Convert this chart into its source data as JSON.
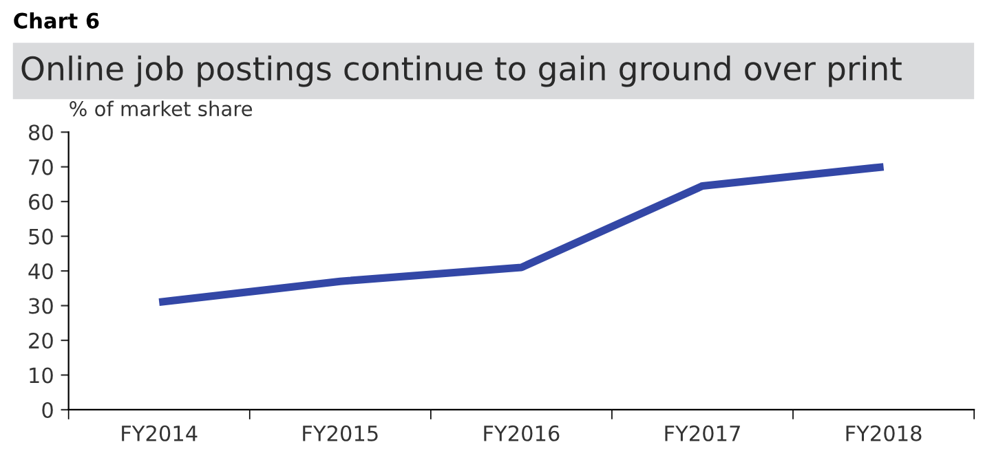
{
  "chart_data": {
    "type": "line",
    "title": "Online job postings continue to gain ground over print",
    "annotations": [
      "Chart 6"
    ],
    "ylabel": "% of market share",
    "categories": [
      "FY2014",
      "FY2015",
      "FY2016",
      "FY2017",
      "FY2018"
    ],
    "series": [
      {
        "color": "#3347a6",
        "values": [
          31,
          37,
          41,
          64.5,
          70
        ]
      }
    ],
    "ylim": [
      0,
      80
    ],
    "yticks": [
      0,
      10,
      20,
      30,
      40,
      50,
      60,
      70,
      80
    ],
    "grid": false,
    "legend": false,
    "marker": "none",
    "line_style": "solid"
  }
}
